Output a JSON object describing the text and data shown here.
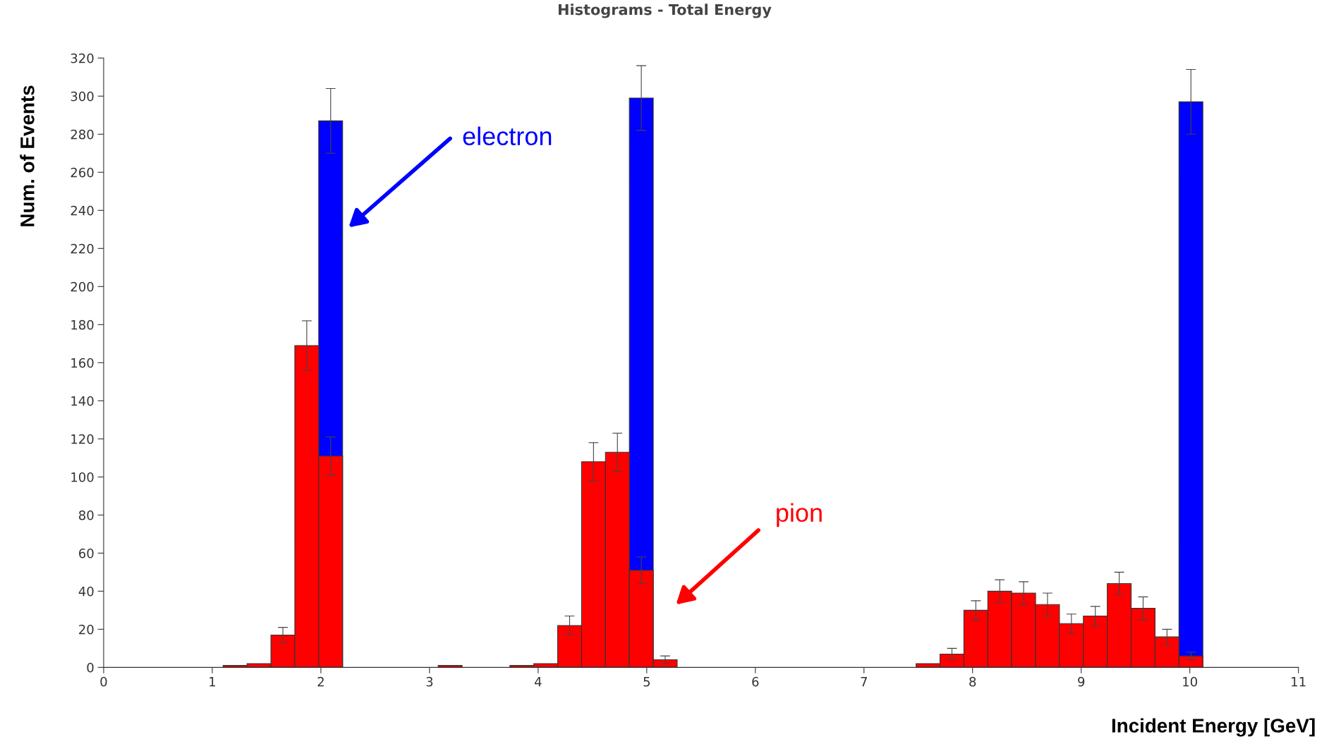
{
  "chart_data": {
    "type": "histogram",
    "title": "Histograms - Total Energy",
    "xlabel": "Incident Energy [GeV]",
    "ylabel": "Num. of Events",
    "bins": [
      0,
      0.22,
      0.44,
      0.66,
      0.88,
      1.1,
      1.32,
      1.54,
      1.76,
      1.98,
      2.2,
      2.42,
      2.64,
      2.86,
      3.08,
      3.3,
      3.52,
      3.74,
      3.96,
      4.18,
      4.4,
      4.62,
      4.84,
      5.06,
      5.28,
      5.5,
      5.72,
      5.94,
      6.16,
      6.38,
      6.6,
      6.82,
      7.04,
      7.26,
      7.48,
      7.7,
      7.92,
      8.14,
      8.36,
      8.58,
      8.8,
      9.02,
      9.24,
      9.46,
      9.68,
      9.9,
      10.12,
      10.34,
      10.56,
      10.78,
      11
    ],
    "series": [
      {
        "color": "#0000ff",
        "values": [
          0,
          0,
          0,
          0,
          0,
          0,
          0,
          0,
          0,
          287,
          0,
          0,
          0,
          0,
          0,
          0,
          0,
          0,
          0,
          0,
          0,
          0,
          299,
          0,
          0,
          0,
          0,
          0,
          0,
          0,
          0,
          0,
          0,
          0,
          0,
          0,
          0,
          0,
          0,
          0,
          0,
          0,
          0,
          0,
          0,
          297,
          0,
          0,
          0,
          0
        ],
        "errors": [
          null,
          null,
          null,
          null,
          null,
          null,
          null,
          null,
          null,
          17,
          null,
          null,
          null,
          null,
          null,
          null,
          null,
          null,
          null,
          null,
          null,
          null,
          17,
          null,
          null,
          null,
          null,
          null,
          null,
          null,
          null,
          null,
          null,
          null,
          null,
          null,
          null,
          null,
          null,
          null,
          null,
          null,
          null,
          null,
          null,
          17,
          null,
          null,
          null,
          null
        ]
      },
      {
        "color": "#ff0000",
        "values": [
          0,
          0,
          0,
          0,
          0,
          1,
          2,
          17,
          169,
          111,
          0,
          0,
          0,
          0,
          1,
          0,
          0,
          1,
          2,
          22,
          108,
          113,
          51,
          4,
          0,
          0,
          0,
          0,
          0,
          0,
          0,
          0,
          0,
          0,
          2,
          7,
          30,
          40,
          39,
          33,
          23,
          27,
          44,
          31,
          16,
          6,
          0,
          0,
          0,
          0
        ],
        "errors": [
          null,
          null,
          null,
          null,
          null,
          null,
          null,
          4,
          13,
          10,
          null,
          null,
          null,
          null,
          null,
          null,
          null,
          null,
          null,
          5,
          10,
          10,
          7,
          2,
          null,
          null,
          null,
          null,
          null,
          null,
          null,
          null,
          null,
          null,
          null,
          3,
          5,
          6,
          6,
          6,
          5,
          5,
          6,
          6,
          4,
          2,
          null,
          null,
          null,
          null
        ]
      }
    ],
    "xlim": [
      0,
      11
    ],
    "xticks": [
      0,
      1,
      2,
      3,
      4,
      5,
      6,
      7,
      8,
      9,
      10,
      11
    ],
    "ylim": [
      0,
      320
    ],
    "yticks": [
      0,
      20,
      40,
      60,
      80,
      100,
      120,
      140,
      160,
      180,
      200,
      220,
      240,
      260,
      280,
      300,
      320
    ],
    "grid": false,
    "legend": false,
    "annotations": [
      "electron",
      "pion"
    ]
  }
}
